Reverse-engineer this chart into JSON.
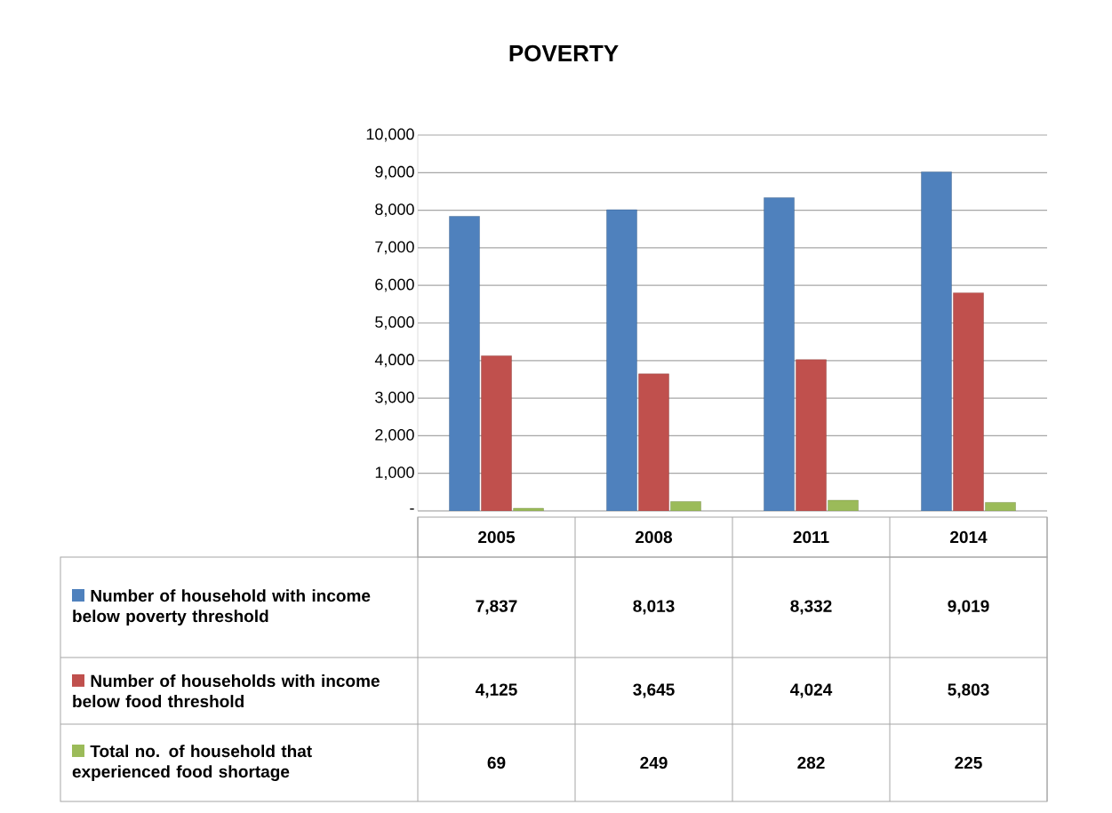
{
  "chart_data": {
    "type": "bar",
    "title": "POVERTY",
    "categories": [
      "2005",
      "2008",
      "2011",
      "2014"
    ],
    "series": [
      {
        "name": "Number of household with income below poverty threshold",
        "color": "#4f81bd",
        "values": [
          7837,
          8013,
          8332,
          9019
        ],
        "value_labels": [
          "7,837",
          "8,013",
          "8,332",
          "9,019"
        ]
      },
      {
        "name": "Number of households with income below food threshold",
        "color": "#c0504d",
        "values": [
          4125,
          3645,
          4024,
          5803
        ],
        "value_labels": [
          "4,125",
          "3,645",
          "4,024",
          "5,803"
        ]
      },
      {
        "name": "Total no. of household that experienced food shortage",
        "color": "#9bbb59",
        "values": [
          69,
          249,
          282,
          225
        ],
        "value_labels": [
          "69",
          "249",
          "282",
          "225"
        ]
      }
    ],
    "ylim": [
      0,
      10000
    ],
    "yticks": [
      {
        "value": 0,
        "label": "-"
      },
      {
        "value": 1000,
        "label": "1,000"
      },
      {
        "value": 2000,
        "label": "2,000"
      },
      {
        "value": 3000,
        "label": "3,000"
      },
      {
        "value": 4000,
        "label": "4,000"
      },
      {
        "value": 5000,
        "label": "5,000"
      },
      {
        "value": 6000,
        "label": "6,000"
      },
      {
        "value": 7000,
        "label": "7,000"
      },
      {
        "value": 8000,
        "label": "8,000"
      },
      {
        "value": 9000,
        "label": "9,000"
      },
      {
        "value": 10000,
        "label": "10,000"
      }
    ],
    "grid": "y",
    "legend": "bottom"
  }
}
